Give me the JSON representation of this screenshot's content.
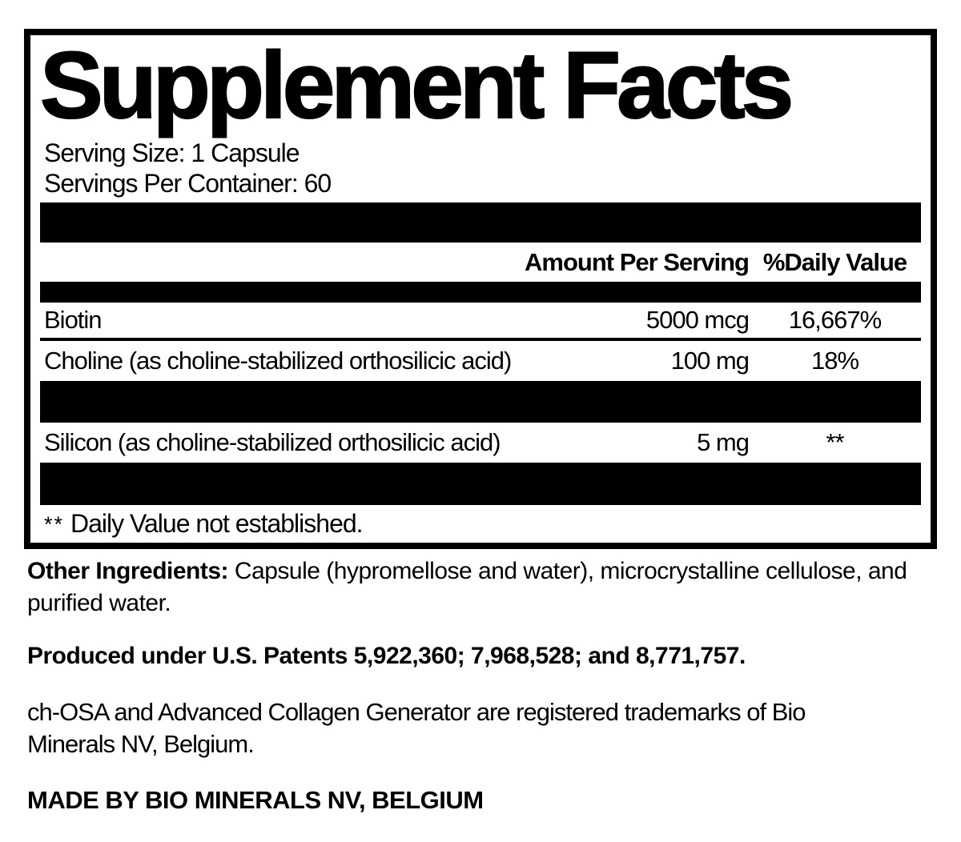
{
  "panel": {
    "title": "Supplement Facts",
    "serving_size": "Serving Size: 1 Capsule",
    "servings_per_container": "Servings Per Container: 60",
    "columns": {
      "amount": "Amount Per Serving",
      "daily_value": "%Daily Value"
    },
    "rows": [
      {
        "name": "Biotin",
        "amount": "5000 mcg",
        "dv": "16,667%"
      },
      {
        "name": "Choline (as choline-stabilized orthosilicic acid)",
        "amount": "100 mg",
        "dv": "18%"
      },
      {
        "name": "Silicon (as choline-stabilized orthosilicic acid)",
        "amount": "5 mg",
        "dv": "**"
      }
    ],
    "footnote": {
      "symbol": "**",
      "text": "Daily Value not established."
    }
  },
  "below": {
    "other_ingredients_label": "Other Ingredients:",
    "other_ingredients_text": "Capsule (hypromellose and water), microcrystalline cellulose, and purified water.",
    "patents": "Produced under U.S. Patents 5,922,360; 7,968,528; and 8,771,757.",
    "trademark": "ch-OSA and Advanced Collagen Generator are registered trademarks of Bio Minerals NV, Belgium.",
    "made_by": "MADE BY BIO MINERALS NV, BELGIUM"
  },
  "colors": {
    "ink": "#000000",
    "background": "#ffffff"
  }
}
